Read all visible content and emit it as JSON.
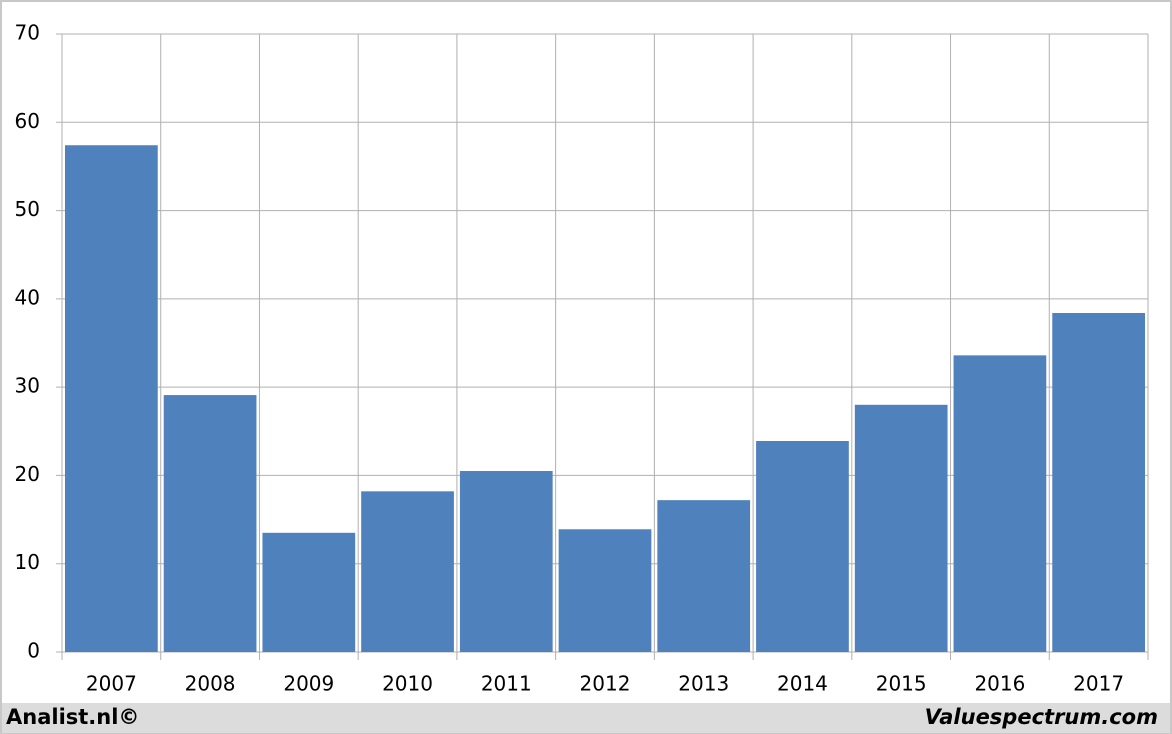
{
  "chart_data": {
    "type": "bar",
    "categories": [
      "2007",
      "2008",
      "2009",
      "2010",
      "2011",
      "2012",
      "2013",
      "2014",
      "2015",
      "2016",
      "2017"
    ],
    "values": [
      57.4,
      29.1,
      13.5,
      18.2,
      20.5,
      13.9,
      17.2,
      23.9,
      28.0,
      33.6,
      38.4
    ],
    "color": "#4f81bd",
    "ylim": [
      0,
      70
    ],
    "yticks": [
      0,
      10,
      20,
      30,
      40,
      50,
      60,
      70
    ],
    "grid": true,
    "footer_left": "Analist.nl©",
    "footer_right": "Valuespectrum.com"
  }
}
